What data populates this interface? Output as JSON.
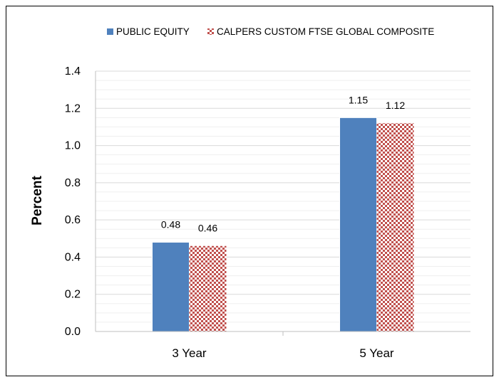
{
  "chart_data": {
    "type": "bar",
    "title": "",
    "xlabel": "",
    "ylabel": "Percent",
    "categories": [
      "3 Year",
      "5 Year"
    ],
    "series": [
      {
        "name": "PUBLIC EQUITY",
        "values": [
          0.48,
          1.15
        ],
        "labels": [
          "0.48",
          "1.15"
        ],
        "color": "#4f81bd",
        "fill": "solid"
      },
      {
        "name": "CALPERS CUSTOM FTSE GLOBAL COMPOSITE",
        "values": [
          0.46,
          1.12
        ],
        "labels": [
          "0.46",
          "1.12"
        ],
        "color": "#c0504d",
        "fill": "checker-pattern"
      }
    ],
    "ylim": [
      0,
      1.4
    ],
    "yticks": [
      "0.0",
      "0.2",
      "0.4",
      "0.6",
      "0.8",
      "1.0",
      "1.2",
      "1.4"
    ],
    "grid": true,
    "legend_position": "top"
  }
}
